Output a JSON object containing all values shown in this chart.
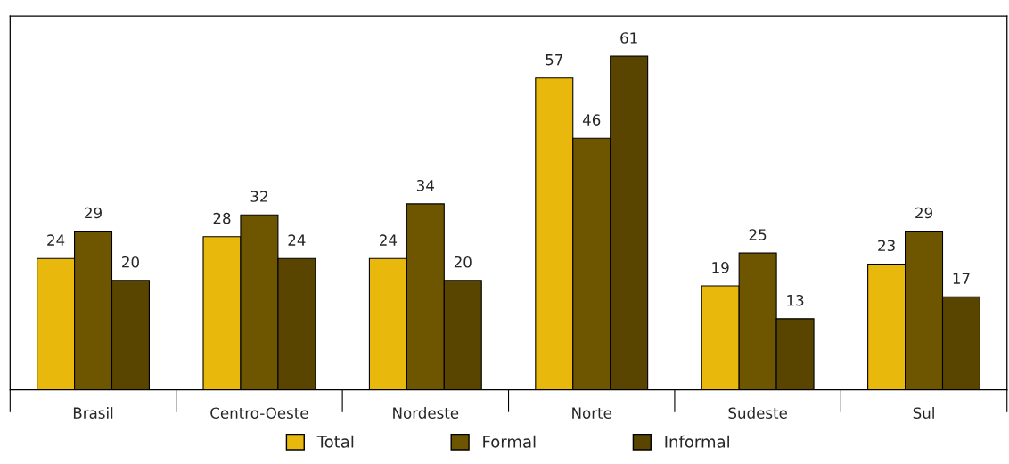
{
  "chart_data": {
    "type": "bar",
    "categories": [
      "Brasil",
      "Centro-Oeste",
      "Nordeste",
      "Norte",
      "Sudeste",
      "Sul"
    ],
    "series": [
      {
        "name": "Total",
        "color": "#e8b80c",
        "values": [
          24,
          28,
          24,
          57,
          19,
          23
        ]
      },
      {
        "name": "Formal",
        "color": "#6e5500",
        "values": [
          29,
          32,
          34,
          46,
          25,
          29
        ]
      },
      {
        "name": "Informal",
        "color": "#594400",
        "values": [
          20,
          24,
          20,
          61,
          13,
          17
        ]
      }
    ],
    "data_labels": true,
    "legend": "bottom",
    "grid": false,
    "tick_labels": "x"
  }
}
